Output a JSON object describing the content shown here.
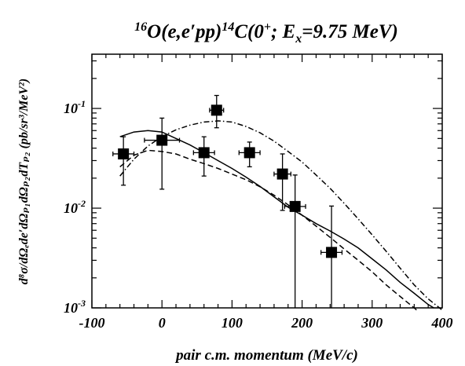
{
  "chart_data": {
    "type": "scatter",
    "title": {
      "prefix_sup": "16",
      "main": "O(e,e′pp)",
      "mid_sup": "14",
      "after": "C(0",
      "plus_sup": "+",
      "rest": "; E",
      "sub": "x",
      "end": "=9.75 MeV)"
    },
    "xlabel": "pair c.m. momentum (MeV/c)",
    "ylabel": "d⁸σ/dΩₑde′dΩₚ₁dΩₚ₂dTₚ₂ (pb/sr³/MeV²)",
    "xlim": [
      -100,
      400
    ],
    "ylim": [
      0.001,
      0.35
    ],
    "yscale": "log",
    "x_ticks": [
      -100,
      0,
      100,
      200,
      300,
      400
    ],
    "x_tick_labels": [
      "-100",
      "0",
      "100",
      "200",
      "300",
      "400"
    ],
    "y_ticks": [
      0.001,
      0.01,
      0.1
    ],
    "y_tick_labels": [
      {
        "base": "10",
        "exp": "-3"
      },
      {
        "base": "10",
        "exp": "-2"
      },
      {
        "base": "10",
        "exp": "-1"
      }
    ],
    "data_points": [
      {
        "x": -55,
        "y": 0.035,
        "xerr": 15,
        "ylo": 0.017,
        "yhi": 0.052
      },
      {
        "x": 0,
        "y": 0.048,
        "xerr": 25,
        "ylo": 0.0155,
        "yhi": 0.08
      },
      {
        "x": 60,
        "y": 0.036,
        "xerr": 15,
        "ylo": 0.021,
        "yhi": 0.052
      },
      {
        "x": 78,
        "y": 0.096,
        "xerr": 10,
        "ylo": 0.064,
        "yhi": 0.135
      },
      {
        "x": 125,
        "y": 0.036,
        "xerr": 15,
        "ylo": 0.026,
        "yhi": 0.046
      },
      {
        "x": 172,
        "y": 0.022,
        "xerr": 12,
        "ylo": 0.0095,
        "yhi": 0.035
      },
      {
        "x": 190,
        "y": 0.0104,
        "xerr": 15,
        "ylo": 0.001,
        "yhi": 0.0215
      },
      {
        "x": 242,
        "y": 0.0036,
        "xerr": 15,
        "ylo": 0.001,
        "yhi": 0.0105
      }
    ],
    "series": [
      {
        "style": "solid",
        "x": [
          -60,
          -40,
          -20,
          0,
          20,
          40,
          60,
          80,
          100,
          120,
          140,
          160,
          180,
          200,
          220,
          240,
          260,
          280,
          300,
          320,
          340,
          360,
          380,
          388
        ],
        "y": [
          0.052,
          0.058,
          0.06,
          0.058,
          0.05,
          0.043,
          0.036,
          0.03,
          0.025,
          0.0205,
          0.0165,
          0.013,
          0.0102,
          0.0085,
          0.007,
          0.0059,
          0.0049,
          0.004,
          0.0031,
          0.0024,
          0.0018,
          0.0014,
          0.00108,
          0.001
        ]
      },
      {
        "style": "dashed",
        "x": [
          -60,
          -40,
          -20,
          0,
          20,
          40,
          60,
          80,
          100,
          120,
          140,
          160,
          180,
          200,
          220,
          240,
          260,
          280,
          300,
          320,
          340,
          360,
          365
        ],
        "y": [
          0.026,
          0.034,
          0.038,
          0.037,
          0.035,
          0.031,
          0.028,
          0.025,
          0.022,
          0.0193,
          0.0164,
          0.0135,
          0.0108,
          0.0085,
          0.0066,
          0.0051,
          0.0039,
          0.003,
          0.0023,
          0.0017,
          0.0013,
          0.001,
          0.00093
        ]
      },
      {
        "style": "dash-dot",
        "x": [
          -60,
          -40,
          -20,
          0,
          20,
          40,
          60,
          80,
          100,
          120,
          140,
          160,
          180,
          200,
          220,
          240,
          260,
          280,
          300,
          320,
          340,
          360,
          380,
          400
        ],
        "y": [
          0.021,
          0.031,
          0.042,
          0.052,
          0.061,
          0.068,
          0.073,
          0.075,
          0.073,
          0.066,
          0.057,
          0.047,
          0.037,
          0.029,
          0.0215,
          0.0158,
          0.0112,
          0.0078,
          0.0054,
          0.0037,
          0.0025,
          0.0017,
          0.00123,
          0.00095
        ]
      }
    ],
    "grid": false,
    "legend": "none",
    "colors": {
      "foreground": "#000000",
      "background": "#ffffff"
    }
  }
}
